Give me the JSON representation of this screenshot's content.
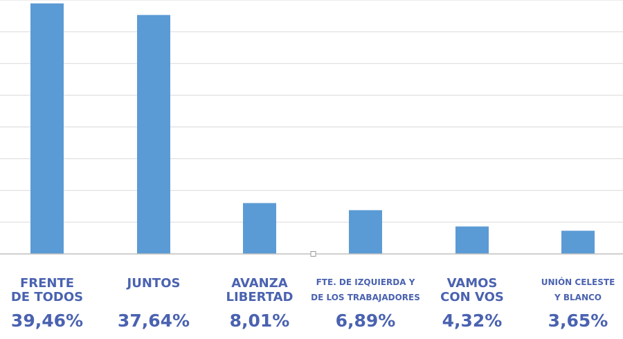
{
  "chart_data": {
    "type": "bar",
    "categories": [
      [
        "FRENTE",
        "DE TODOS"
      ],
      [
        "JUNTOS"
      ],
      [
        "AVANZA",
        "LIBERTAD"
      ],
      [
        "FTE. DE IZQUIERDA Y",
        "DE LOS TRABAJADORES"
      ],
      [
        "VAMOS",
        "CON VOS"
      ],
      [
        "UNIÓN CELESTE",
        "Y BLANCO"
      ]
    ],
    "values": [
      39.46,
      37.64,
      8.01,
      6.89,
      4.32,
      3.65
    ],
    "value_labels": [
      "39,46%",
      "37,64%",
      "8,01%",
      "6,89%",
      "4,32%",
      "3,65%"
    ],
    "ylim": [
      0,
      40
    ],
    "grid": true,
    "bar_color": "#5b9bd5",
    "grid_color": "#d9d9d9",
    "axis_color": "#bfbfbf",
    "label_color": "#4a62b0"
  }
}
